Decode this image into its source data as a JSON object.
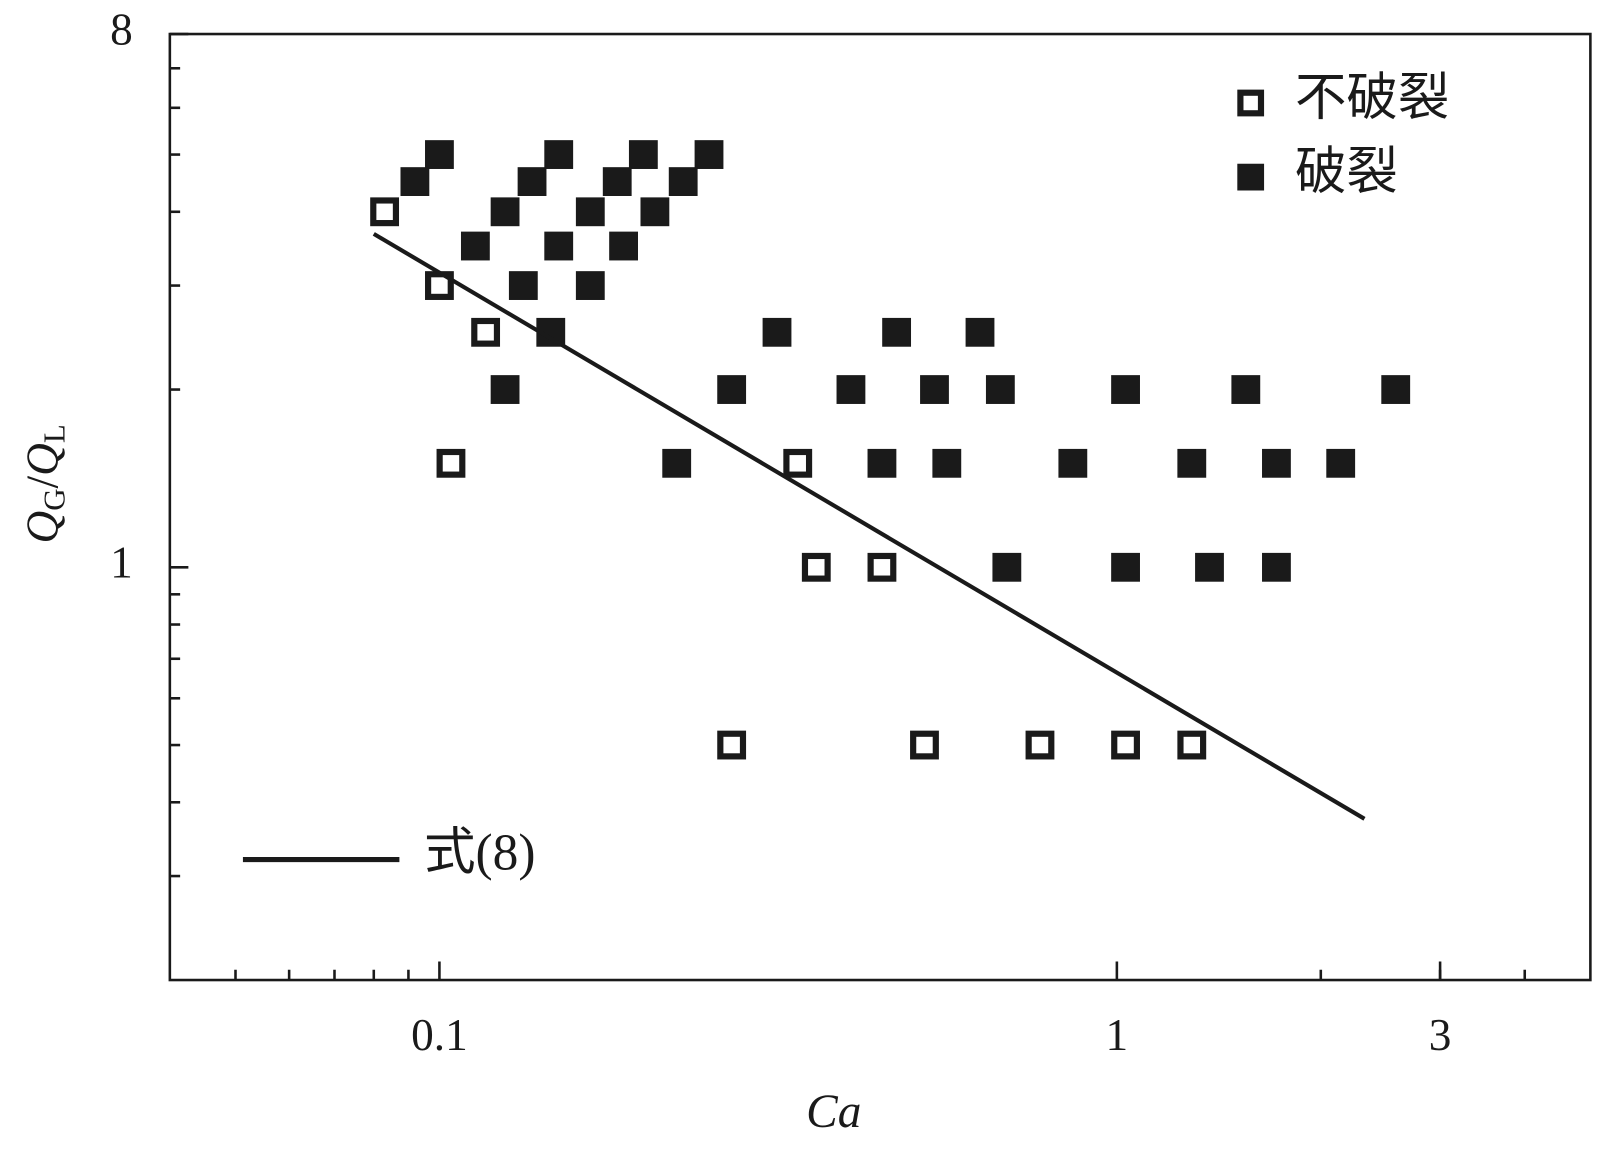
{
  "chart_data": {
    "type": "scatter",
    "xlabel": "Ca",
    "ylabel": [
      "Q",
      "G",
      "/",
      "Q",
      "L"
    ],
    "xscale": "log",
    "yscale": "log",
    "xlim": [
      0.04,
      5
    ],
    "ylim": [
      0.2,
      8
    ],
    "xticks": [
      0.1,
      1,
      3
    ],
    "yticks": [
      1,
      8
    ],
    "xminorticks": [
      0.05,
      0.06,
      0.07,
      0.08,
      0.09,
      2,
      3,
      4
    ],
    "yminorticks": [
      0.3,
      0.4,
      0.5,
      0.6,
      0.7,
      0.8,
      0.9,
      2,
      3,
      4,
      5,
      6,
      7
    ],
    "series": [
      {
        "name": "不破裂",
        "marker": "open-square",
        "color": "#1a1a1a",
        "legend": "upper right",
        "x": [
          0.083,
          0.1,
          0.117,
          0.104,
          0.338,
          0.36,
          0.45,
          0.27,
          0.52,
          0.77,
          1.03,
          1.29
        ],
        "values": [
          4,
          3,
          2.5,
          1.5,
          1.5,
          1,
          1,
          0.5,
          0.5,
          0.5,
          0.5,
          0.5
        ]
      },
      {
        "name": "破裂",
        "marker": "filled-square",
        "color": "#1a1a1a",
        "legend": "upper right",
        "x": [
          0.1,
          0.15,
          0.2,
          0.25,
          0.092,
          0.137,
          0.183,
          0.229,
          0.125,
          0.167,
          0.208,
          0.113,
          0.15,
          0.187,
          0.133,
          0.167,
          0.146,
          0.315,
          0.473,
          0.628,
          0.125,
          0.27,
          0.405,
          0.538,
          0.673,
          1.03,
          1.55,
          2.58,
          0.224,
          0.45,
          0.561,
          0.861,
          1.29,
          1.72,
          2.14,
          0.688,
          1.03,
          1.37,
          1.72
        ],
        "values": [
          5,
          5,
          5,
          5,
          4.5,
          4.5,
          4.5,
          4.5,
          4,
          4,
          4,
          3.5,
          3.5,
          3.5,
          3,
          3,
          2.5,
          2.5,
          2.5,
          2.5,
          2,
          2,
          2,
          2,
          2,
          2,
          2,
          2,
          1.5,
          1.5,
          1.5,
          1.5,
          1.5,
          1.5,
          1.5,
          1,
          1,
          1,
          1
        ]
      },
      {
        "name": "式(8)",
        "marker": "line",
        "color": "#1a1a1a",
        "legend": "lower left",
        "x": [
          0.08,
          2.32
        ],
        "values": [
          3.67,
          0.375
        ]
      }
    ]
  }
}
